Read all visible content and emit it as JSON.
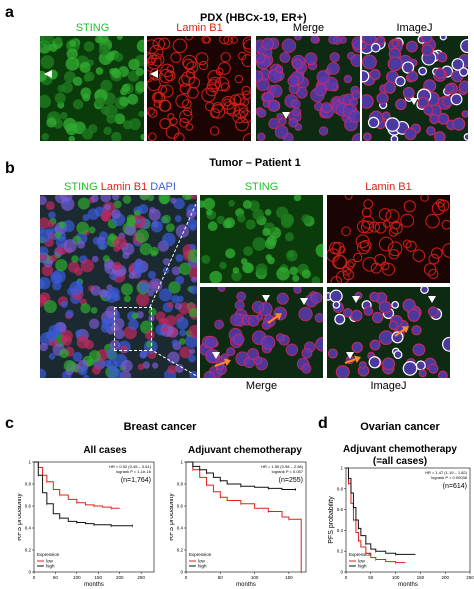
{
  "panel_a": {
    "letter": "a",
    "title": "PDX (HBCx-19, ER+)",
    "labels": [
      "STING",
      "Lamin B1",
      "Merge",
      "ImageJ"
    ],
    "label_colors": [
      "#22c02a",
      "#e0201a",
      "#000000",
      "#000000"
    ]
  },
  "panel_b": {
    "letter": "b",
    "title": "Tumor – Patient 1",
    "overview_label": {
      "sting": "STING",
      "lamin": "Lamin B1",
      "dapi": "DAPI"
    },
    "sting_label": "STING",
    "lamin_label": "Lamin B1",
    "merge_label": "Merge",
    "imagej_label": "ImageJ",
    "colors": {
      "sting": "#22c02a",
      "lamin": "#e0201a",
      "dapi": "#3a5bd9"
    }
  },
  "panel_c": {
    "letter": "c",
    "title": "Breast cancer",
    "plot1_title": "All cases",
    "plot2_title": "Adjuvant chemotherapy",
    "plot1_stats": {
      "hr": "HR = 0.52 (0.45 – 0.61)",
      "logrank": "logrank P = 1.1e-16",
      "n": "(n=1,764)"
    },
    "plot2_stats": {
      "hr": "HR = 1.59 (0.98 – 2.58)",
      "logrank": "logrank P = 0.057",
      "n": "(n=255)"
    },
    "ylabel": "RFS probability",
    "xlabel": "months"
  },
  "panel_d": {
    "letter": "d",
    "title": "Ovarian cancer",
    "plot_title_line1": "Adjuvant chemotherapy",
    "plot_title_line2": "(=all cases)",
    "stats": {
      "hr": "HR = 1.47 (1.19 – 1.82)",
      "logrank": "logrank P = 0.00038",
      "n": "(n=614)"
    },
    "ylabel": "PFS probability",
    "xlabel": "months"
  },
  "legend": {
    "title": "Expression",
    "low": "low",
    "high": "high",
    "low_color": "#e0201a",
    "high_color": "#111111"
  },
  "chart_data": [
    {
      "type": "line",
      "title": "All cases",
      "xlabel": "months",
      "ylabel": "RFS probability",
      "xlim": [
        0,
        280
      ],
      "ylim": [
        0,
        1
      ],
      "x_ticks": [
        0,
        50,
        100,
        150,
        200,
        250
      ],
      "y_ticks": [
        0,
        0.2,
        0.4,
        0.6,
        0.8,
        1
      ],
      "series": [
        {
          "name": "low",
          "color": "#e0201a",
          "x": [
            0,
            10,
            20,
            30,
            45,
            60,
            80,
            100,
            120,
            140,
            160,
            180,
            200
          ],
          "y": [
            1,
            0.95,
            0.88,
            0.82,
            0.75,
            0.7,
            0.66,
            0.63,
            0.61,
            0.6,
            0.59,
            0.58,
            0.58
          ]
        },
        {
          "name": "high",
          "color": "#111111",
          "x": [
            0,
            10,
            20,
            30,
            45,
            60,
            80,
            100,
            120,
            140,
            160,
            180,
            200,
            230
          ],
          "y": [
            1,
            0.88,
            0.72,
            0.62,
            0.53,
            0.49,
            0.46,
            0.45,
            0.44,
            0.43,
            0.43,
            0.42,
            0.42,
            0.42
          ]
        }
      ]
    },
    {
      "type": "line",
      "title": "Adjuvant chemotherapy",
      "xlabel": "months",
      "ylabel": "RFS probability",
      "xlim": [
        0,
        175
      ],
      "ylim": [
        0,
        1
      ],
      "x_ticks": [
        0,
        50,
        100,
        150
      ],
      "y_ticks": [
        0,
        0.2,
        0.4,
        0.6,
        0.8,
        1
      ],
      "series": [
        {
          "name": "low",
          "color": "#e0201a",
          "x": [
            0,
            10,
            20,
            30,
            40,
            50,
            60,
            80,
            100,
            120,
            140,
            150,
            165,
            168
          ],
          "y": [
            1,
            0.93,
            0.86,
            0.79,
            0.73,
            0.68,
            0.65,
            0.62,
            0.58,
            0.55,
            0.5,
            0.48,
            0.48,
            0.0
          ]
        },
        {
          "name": "high",
          "color": "#111111",
          "x": [
            0,
            10,
            20,
            30,
            40,
            50,
            60,
            80,
            100,
            120,
            140,
            160
          ],
          "y": [
            1,
            0.96,
            0.93,
            0.9,
            0.86,
            0.83,
            0.8,
            0.78,
            0.77,
            0.76,
            0.75,
            0.75
          ]
        }
      ]
    },
    {
      "type": "line",
      "title": "Adjuvant chemotherapy (=all cases)",
      "xlabel": "months",
      "ylabel": "PFS probability",
      "xlim": [
        0,
        250
      ],
      "ylim": [
        0,
        1
      ],
      "x_ticks": [
        0,
        50,
        100,
        150,
        200,
        250
      ],
      "y_ticks": [
        0,
        0.2,
        0.4,
        0.6,
        0.8,
        1
      ],
      "series": [
        {
          "name": "low",
          "color": "#e0201a",
          "x": [
            0,
            5,
            10,
            15,
            20,
            25,
            30,
            40,
            50,
            60,
            80,
            100,
            120
          ],
          "y": [
            1,
            0.85,
            0.66,
            0.5,
            0.38,
            0.3,
            0.24,
            0.18,
            0.14,
            0.12,
            0.1,
            0.09,
            0.09
          ]
        },
        {
          "name": "high",
          "color": "#111111",
          "x": [
            0,
            5,
            10,
            15,
            20,
            25,
            30,
            40,
            50,
            60,
            80,
            100,
            140
          ],
          "y": [
            1,
            0.9,
            0.76,
            0.62,
            0.5,
            0.42,
            0.35,
            0.27,
            0.22,
            0.2,
            0.18,
            0.17,
            0.17
          ]
        }
      ]
    }
  ]
}
